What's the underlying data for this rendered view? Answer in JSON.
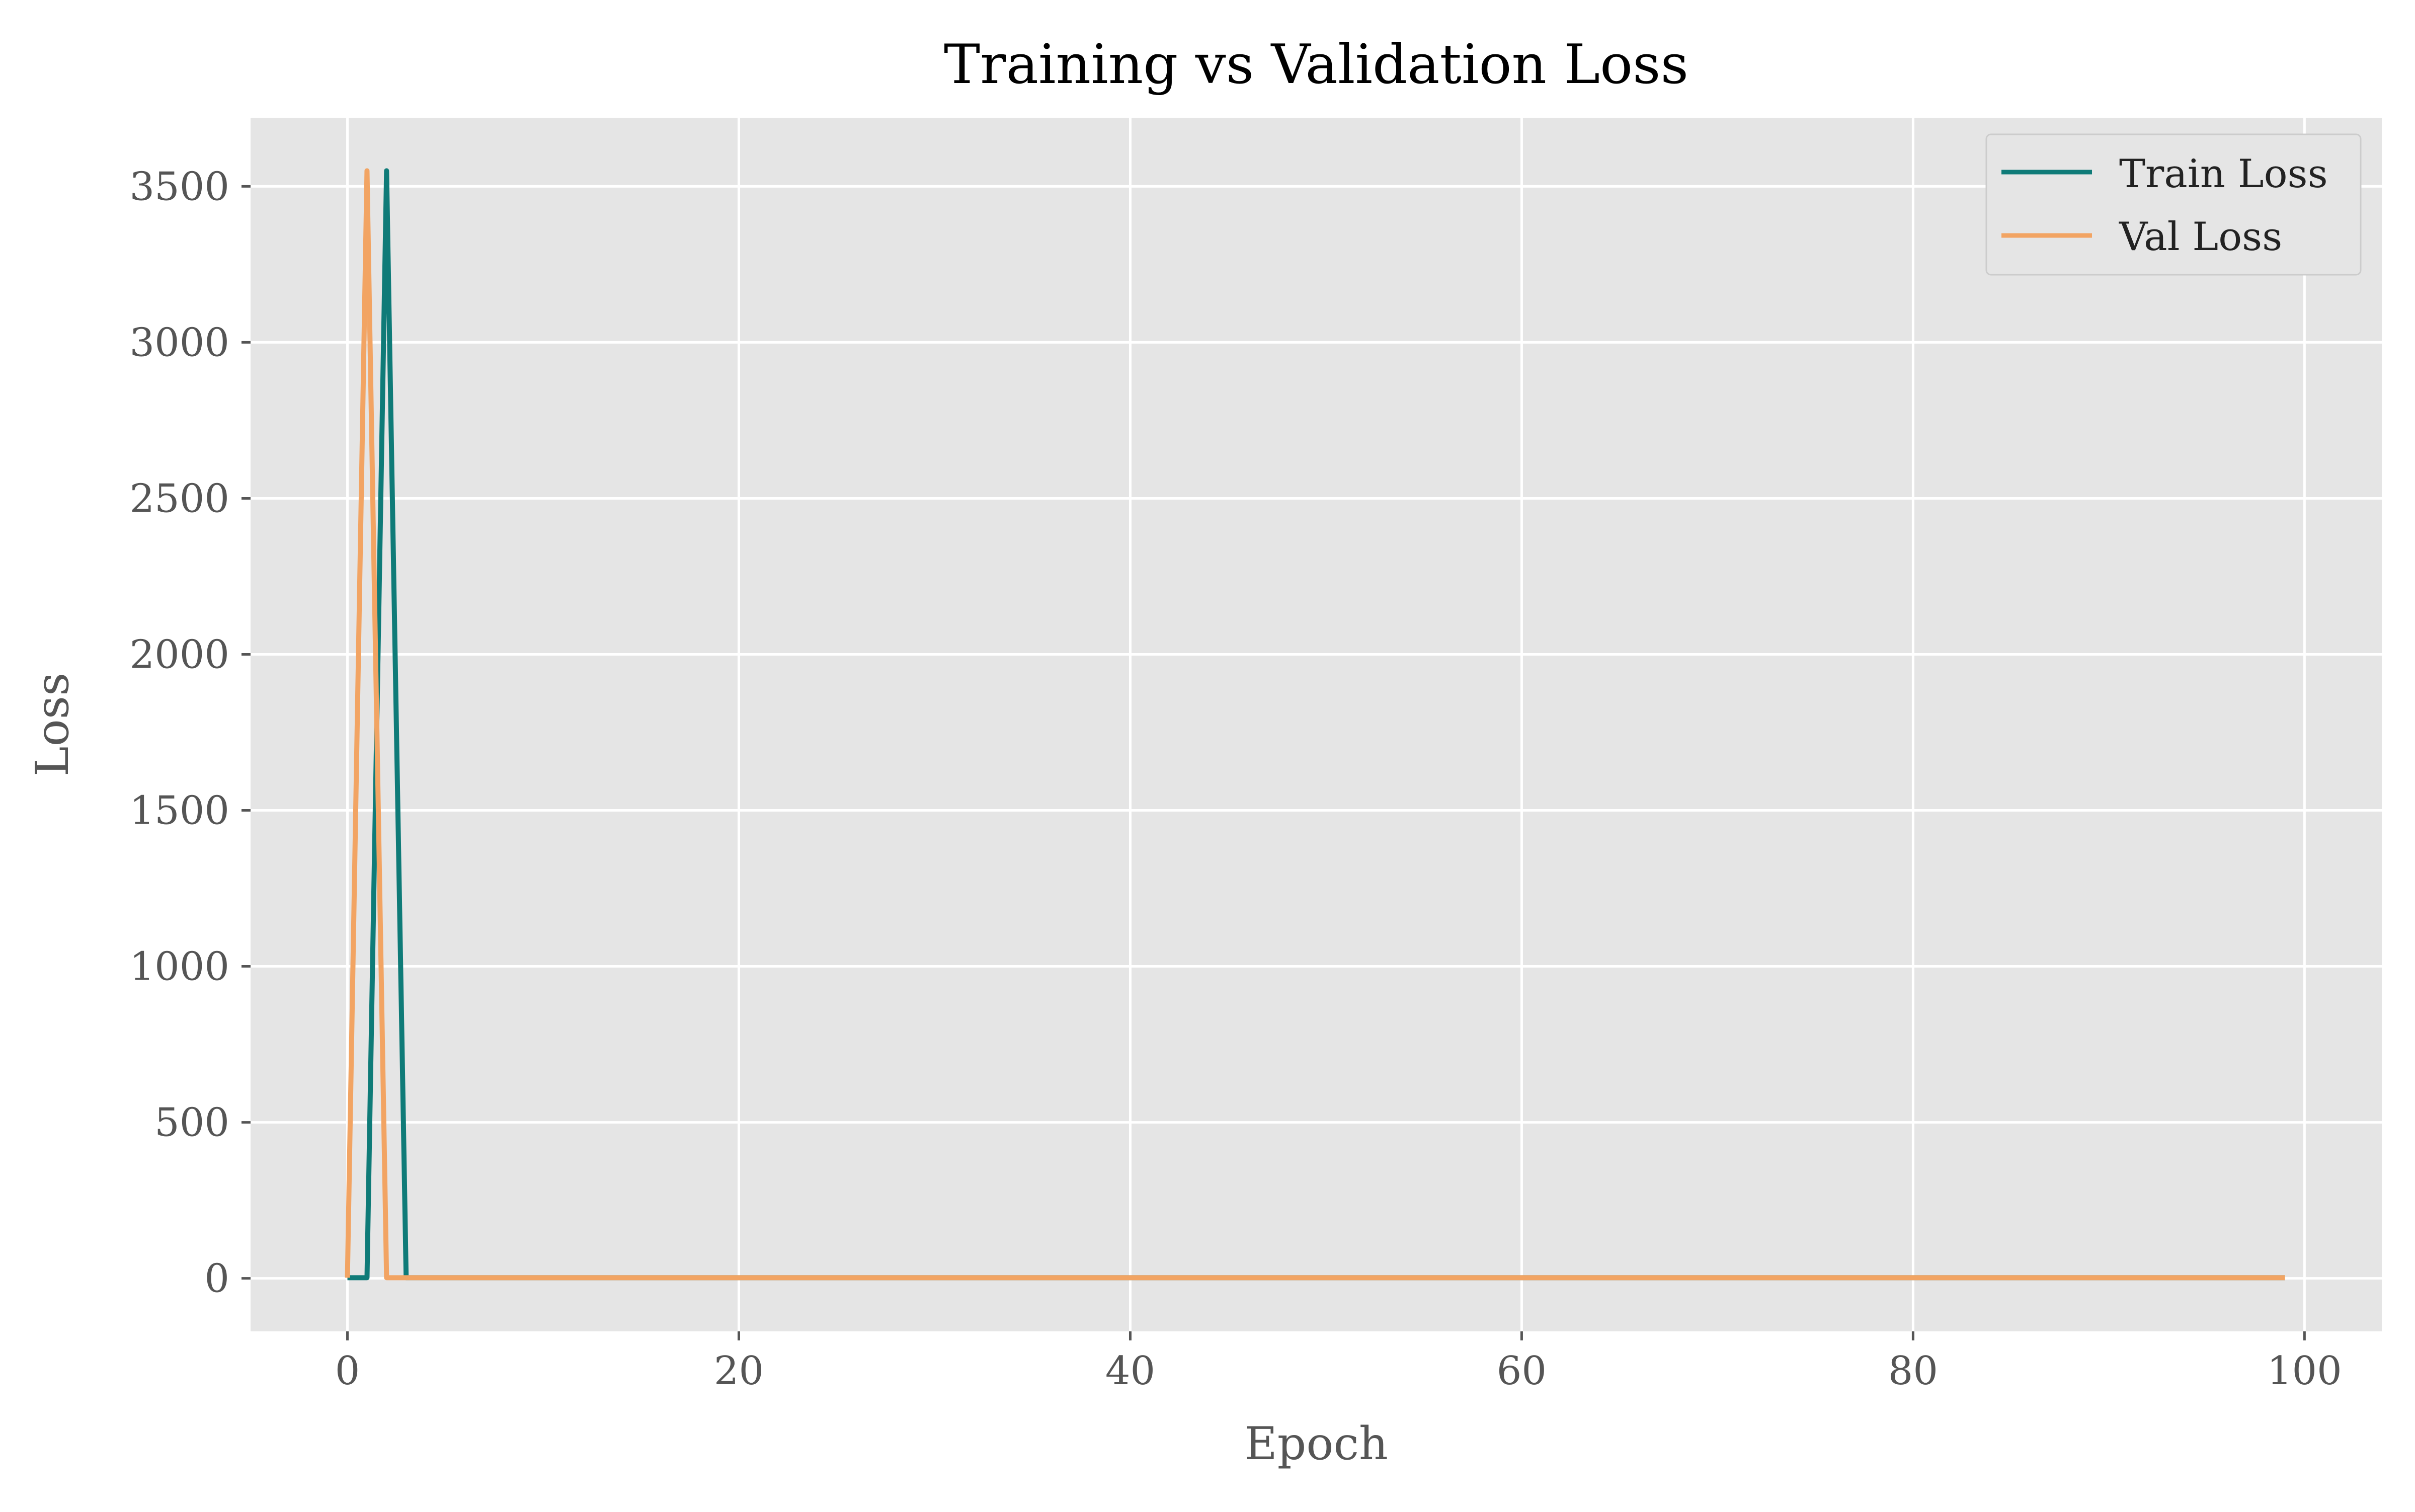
{
  "chart_data": {
    "type": "line",
    "title": "Training vs Validation Loss",
    "xlabel": "Epoch",
    "ylabel": "Loss",
    "xlim": [
      -4.95,
      103.95
    ],
    "ylim": [
      -170,
      3720
    ],
    "xticks": [
      0,
      20,
      40,
      60,
      80,
      100
    ],
    "yticks": [
      0,
      500,
      1000,
      1500,
      2000,
      2500,
      3000,
      3500
    ],
    "grid": true,
    "legend_position": "top-right",
    "series": [
      {
        "name": "Train Loss",
        "color": "#0f7b78",
        "x": [
          0,
          1,
          2,
          3,
          99
        ],
        "y": [
          2,
          2,
          3550,
          2,
          2
        ]
      },
      {
        "name": "Val Loss",
        "color": "#f2a463",
        "x": [
          0,
          1,
          2,
          99
        ],
        "y": [
          2,
          3550,
          2,
          2
        ]
      }
    ],
    "colors": {
      "plot_background": "#e5e5e5",
      "grid": "#ffffff",
      "text": "#555555",
      "title": "#000000"
    }
  }
}
